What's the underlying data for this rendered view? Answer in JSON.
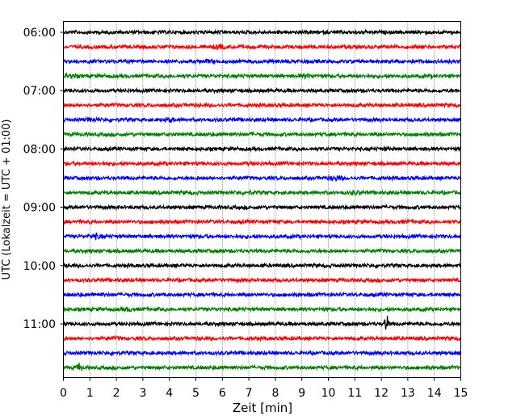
{
  "chart_data": {
    "type": "line",
    "title": "",
    "xlabel": "Zeit  [min]",
    "ylabel": "UTC (Lokalzeit = UTC + 01:00)",
    "xlim": [
      0,
      15
    ],
    "x_ticks": [
      "0",
      "1",
      "2",
      "3",
      "4",
      "5",
      "6",
      "7",
      "8",
      "9",
      "10",
      "11",
      "12",
      "13",
      "14",
      "15"
    ],
    "y_ticks": [
      "06:00",
      "07:00",
      "08:00",
      "09:00",
      "10:00",
      "11:00"
    ],
    "grid": "vertical-dotted",
    "trace_interval_min": 15,
    "start_time": "06:00",
    "trace_colors": [
      "#000000",
      "#ff0000",
      "#0000ff",
      "#008000"
    ],
    "events": [
      {
        "row": 1,
        "minute": 5.9,
        "amp": 1.6
      },
      {
        "row": 2,
        "minute": 5.4,
        "amp": 1.4
      },
      {
        "row": 2,
        "minute": 9.1,
        "amp": 1.3
      },
      {
        "row": 3,
        "minute": 0.2,
        "amp": 1.8
      },
      {
        "row": 3,
        "minute": 9.2,
        "amp": 1.5
      },
      {
        "row": 6,
        "minute": 1.1,
        "amp": 1.6
      },
      {
        "row": 6,
        "minute": 4.0,
        "amp": 1.7
      },
      {
        "row": 8,
        "minute": 12.2,
        "amp": 1.3
      },
      {
        "row": 9,
        "minute": 7.1,
        "amp": 1.2
      },
      {
        "row": 10,
        "minute": 10.3,
        "amp": 2.0
      },
      {
        "row": 11,
        "minute": 7.0,
        "amp": 1.4
      },
      {
        "row": 11,
        "minute": 11.0,
        "amp": 1.6
      },
      {
        "row": 13,
        "minute": 12.9,
        "amp": 1.3
      },
      {
        "row": 14,
        "minute": 1.2,
        "amp": 2.0
      },
      {
        "row": 18,
        "minute": 1.3,
        "amp": 1.3
      },
      {
        "row": 19,
        "minute": 2.4,
        "amp": 1.6
      },
      {
        "row": 20,
        "minute": 12.2,
        "amp": 6.0
      },
      {
        "row": 21,
        "minute": 1.9,
        "amp": 1.3
      },
      {
        "row": 23,
        "minute": 0.6,
        "amp": 3.5
      }
    ]
  }
}
